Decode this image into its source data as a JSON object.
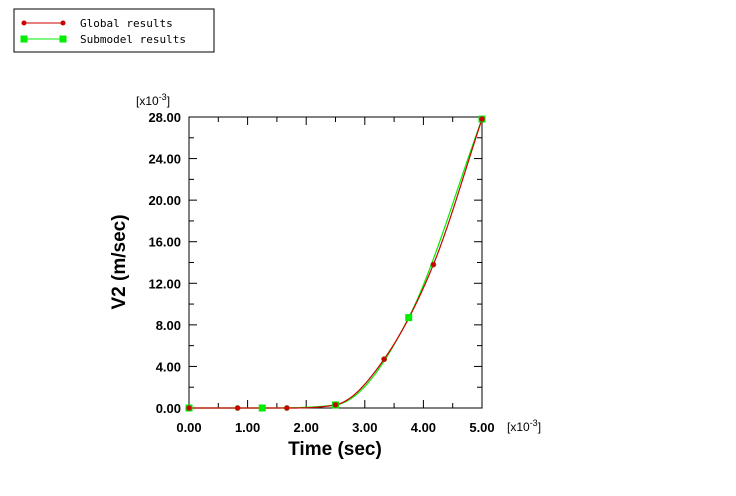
{
  "chart_data": {
    "type": "line",
    "xlabel": "Time (sec)",
    "ylabel": "V2 (m/sec)",
    "x_multiplier": "[x10",
    "x_multiplier_exp": "-3",
    "y_multiplier": "[x10",
    "y_multiplier_exp": "-3",
    "xlim": [
      0,
      5.0
    ],
    "ylim": [
      0,
      28.0
    ],
    "x_ticks": [
      0,
      1,
      2,
      3,
      4,
      5
    ],
    "x_tick_labels": [
      "0.00",
      "1.00",
      "2.00",
      "3.00",
      "4.00",
      "5.00"
    ],
    "y_ticks": [
      0,
      4,
      8,
      12,
      16,
      20,
      24,
      28
    ],
    "y_tick_labels": [
      "0.00",
      "4.00",
      "8.00",
      "12.00",
      "16.00",
      "20.00",
      "24.00",
      "28.00"
    ],
    "grid": false,
    "legend_position": "top-left",
    "series": [
      {
        "name": "Global results",
        "color": "#cc0000",
        "marker": "circle",
        "x": [
          0,
          0.83,
          1.67,
          2.5,
          3.33,
          4.17,
          5.0
        ],
        "y": [
          0,
          0,
          0,
          0.3,
          4.7,
          13.8,
          27.8
        ]
      },
      {
        "name": "Submodel results",
        "color": "#00ee00",
        "marker": "square",
        "x": [
          0,
          1.25,
          2.5,
          3.75,
          5.0
        ],
        "y": [
          0,
          0,
          0.3,
          8.7,
          27.8
        ]
      }
    ]
  }
}
